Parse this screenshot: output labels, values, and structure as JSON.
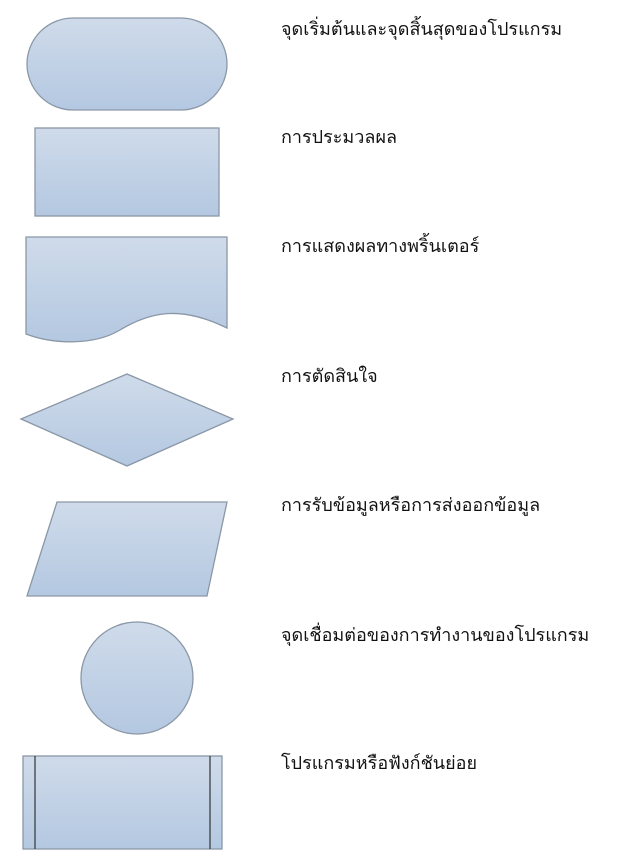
{
  "symbols": [
    {
      "shape": "terminator",
      "label": "จุดเริ่มต้นและจุดสิ้นสุดของโปรแกรม"
    },
    {
      "shape": "process",
      "label": "การประมวลผล"
    },
    {
      "shape": "document",
      "label": "การแสดงผลทางพริ้นเตอร์"
    },
    {
      "shape": "decision",
      "label": "การตัดสินใจ"
    },
    {
      "shape": "input-output",
      "label": "การรับข้อมูลหรือการส่งออกข้อมูล"
    },
    {
      "shape": "connector",
      "label": "จุดเชื่อมต่อของการทำงานของโปรแกรม"
    },
    {
      "shape": "predefined-process",
      "label": "โปรแกรมหรือฟังก์ชันย่อย"
    }
  ],
  "colors": {
    "fill_top": "#cfdbea",
    "fill_bottom": "#b4c8e1",
    "stroke": "#8a97a6"
  }
}
